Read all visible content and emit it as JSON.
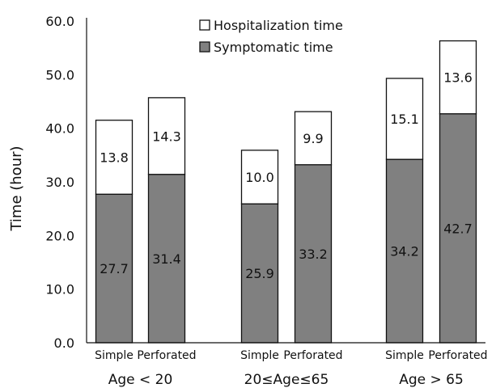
{
  "chart_data": {
    "type": "bar",
    "stacked": true,
    "ylabel": "Time (hour)",
    "ylim": [
      0,
      60
    ],
    "yticks": [
      "0.0",
      "10.0",
      "20.0",
      "30.0",
      "40.0",
      "50.0",
      "60.0"
    ],
    "grid": false,
    "legend_position": "top",
    "groups": [
      {
        "label": "Age < 20",
        "bars": [
          {
            "label": "Simple",
            "symptomatic": 27.7,
            "hospitalization": 13.8
          },
          {
            "label": "Perforated",
            "symptomatic": 31.4,
            "hospitalization": 14.3
          }
        ]
      },
      {
        "label": "20≤Age≤65",
        "bars": [
          {
            "label": "Simple",
            "symptomatic": 25.9,
            "hospitalization": 10.0
          },
          {
            "label": "Perforated",
            "symptomatic": 33.2,
            "hospitalization": 9.9
          }
        ]
      },
      {
        "label": "Age > 65",
        "bars": [
          {
            "label": "Simple",
            "symptomatic": 34.2,
            "hospitalization": 15.1
          },
          {
            "label": "Perforated",
            "symptomatic": 42.7,
            "hospitalization": 13.6
          }
        ]
      }
    ],
    "series": [
      {
        "name": "Symptomatic time",
        "key": "symptomatic",
        "color": "#808080"
      },
      {
        "name": "Hospitalization time",
        "key": "hospitalization",
        "color": "#ffffff"
      }
    ],
    "legend": [
      {
        "name": "Hospitalization time",
        "color": "#ffffff"
      },
      {
        "name": "Symptomatic time",
        "color": "#808080"
      }
    ]
  }
}
